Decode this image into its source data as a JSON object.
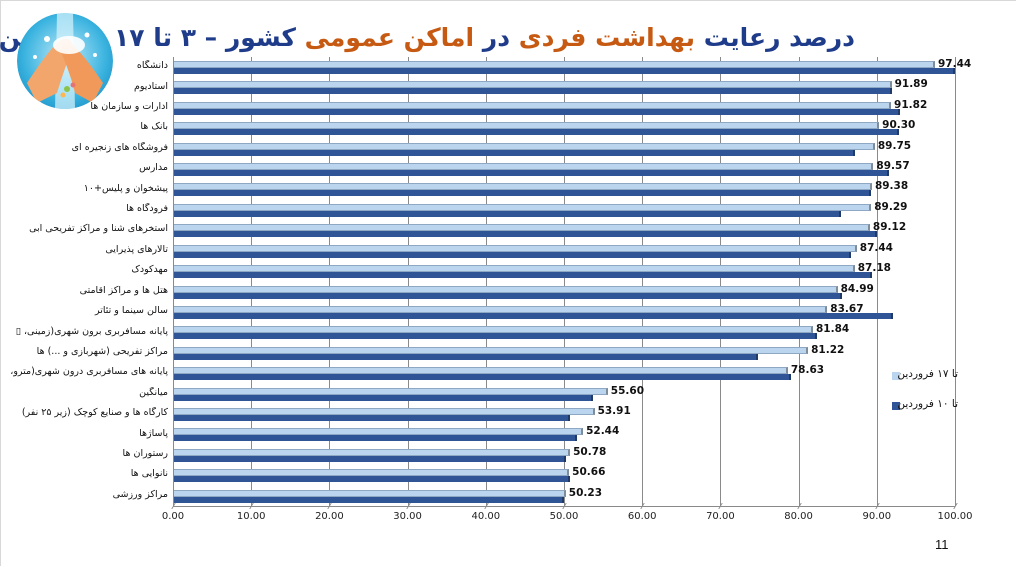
{
  "slide": {
    "title_parts": [
      {
        "text": "درصد رعایت ",
        "color": "blue"
      },
      {
        "text": "بهداشت فردی",
        "color": "orange"
      },
      {
        "text": " در ",
        "color": "blue"
      },
      {
        "text": "اماکن عمومی",
        "color": "orange"
      },
      {
        "text": " کشور – ۳ تا ۱۷ فروردین",
        "color": "blue"
      }
    ],
    "page_number": "11",
    "logo_icon": "hand-washing-icon"
  },
  "colors": {
    "title_blue": "#1f3c8a",
    "title_orange": "#c65a13",
    "series_light": "#bcd5ef",
    "series_dark": "#2f5597"
  },
  "chart_data": {
    "type": "bar",
    "orientation": "horizontal",
    "title": "درصد رعایت بهداشت فردی در اماکن عمومی کشور – ۳ تا ۱۷ فروردین",
    "xlabel": "",
    "ylabel": "",
    "xlim": [
      0,
      100
    ],
    "x_ticks": [
      "0.00",
      "10.00",
      "20.00",
      "30.00",
      "40.00",
      "50.00",
      "60.00",
      "70.00",
      "80.00",
      "90.00",
      "100.00"
    ],
    "grid": true,
    "legend_position": "right",
    "categories": [
      "دانشگاه",
      "استادیوم",
      "ادارات و سازمان ها",
      "بانک ها",
      "فروشگاه های زنجیره ای",
      "مدارس",
      "پیشخوان و پلیس+۱۰",
      "فرودگاه ها",
      "استخرهای شنا و مراکز تفریحی آبی",
      "تالارهای پذیرایی",
      "مهدکودک",
      "هتل ها و مراکز اقامتی",
      "سالن سینما و تئاتر",
      "پایانه مسافربری برون شهری(زمینی، ▯",
      "مراکز تفریحی (شهربازی و ...) ها",
      "پایانه های مسافربری درون شهری(مترو، ▯",
      "میانگین",
      "کارگاه ها و صنایع کوچک (زیر ۲۵ نفر)",
      "پاساژها",
      "رستوران ها",
      "نانوایی ها",
      "مراکز ورزشی"
    ],
    "series": [
      {
        "name": "تا ۱۷ فروردین",
        "color": "#bcd5ef",
        "values": [
          97.44,
          91.89,
          91.82,
          90.3,
          89.75,
          89.57,
          89.38,
          89.29,
          89.12,
          87.44,
          87.18,
          84.99,
          83.67,
          81.84,
          81.22,
          78.63,
          55.6,
          53.91,
          52.44,
          50.78,
          50.66,
          50.23
        ],
        "labels": [
          "97.44",
          "91.89",
          "91.82",
          "90.30",
          "89.75",
          "89.57",
          "89.38",
          "89.29",
          "89.12",
          "87.44",
          "87.18",
          "84.99",
          "83.67",
          "81.84",
          "81.22",
          "78.63",
          "55.60",
          "53.91",
          "52.44",
          "50.78",
          "50.66",
          "50.23"
        ]
      },
      {
        "name": "تا ۱۰ فروردین",
        "color": "#2f5597",
        "values": [
          100.0,
          92.0,
          93.0,
          92.8,
          87.2,
          91.5,
          89.3,
          85.4,
          90.0,
          86.7,
          89.4,
          85.5,
          92.1,
          82.3,
          74.8,
          79.0,
          53.7,
          50.8,
          51.6,
          50.2,
          50.8,
          50.0
        ]
      }
    ]
  }
}
